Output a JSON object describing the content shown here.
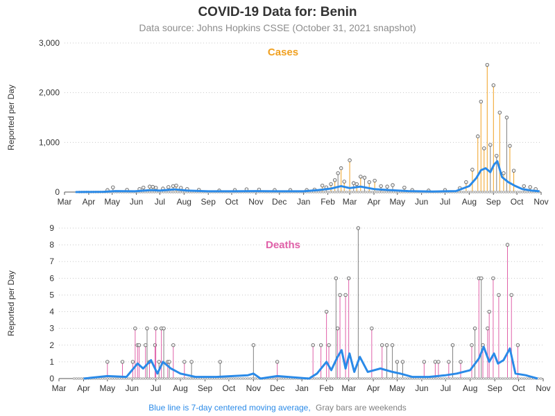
{
  "header": {
    "title": "COVID-19 Data for: Benin",
    "subtitle": "Data source: Johns Hopkins CSSE (October 31, 2021 snapshot)"
  },
  "footer": {
    "blue_note": "Blue line is 7-day centered moving average,",
    "gray_note": "Gray bars are weekends"
  },
  "colors": {
    "cases": "#f0a020",
    "deaths": "#e060a8",
    "average": "#2a8ae8",
    "weekend": "#808080",
    "grid": "#c8c8c8"
  },
  "chart_data": [
    {
      "type": "bar",
      "title": "Cases",
      "ylabel": "Reported per Day",
      "xlabel": "",
      "x_ticks": [
        "Mar",
        "Apr",
        "May",
        "Jun",
        "Jul",
        "Aug",
        "Sep",
        "Oct",
        "Nov",
        "Dec",
        "Jan",
        "Feb",
        "Mar",
        "Apr",
        "May",
        "Jun",
        "Jul",
        "Aug",
        "Sep",
        "Oct",
        "Nov"
      ],
      "y_ticks": [
        "0",
        "1,000",
        "2,000",
        "3,000"
      ],
      "ylim": [
        0,
        3000
      ],
      "x_range": [
        "2020-03-01",
        "2021-11-01"
      ],
      "grid": "horizontal dotted",
      "series": [
        {
          "name": "Reported per Day",
          "style": "vertical lines with circle markers",
          "points": [
            [
              "2020-04-25",
              40
            ],
            [
              "2020-05-02",
              95
            ],
            [
              "2020-05-20",
              45
            ],
            [
              "2020-06-05",
              60
            ],
            [
              "2020-06-10",
              90
            ],
            [
              "2020-06-18",
              110
            ],
            [
              "2020-06-22",
              105
            ],
            [
              "2020-06-26",
              85
            ],
            [
              "2020-07-05",
              70
            ],
            [
              "2020-07-12",
              100
            ],
            [
              "2020-07-18",
              120
            ],
            [
              "2020-07-22",
              130
            ],
            [
              "2020-07-28",
              85
            ],
            [
              "2020-08-05",
              60
            ],
            [
              "2020-08-20",
              45
            ],
            [
              "2020-09-15",
              30
            ],
            [
              "2020-10-05",
              40
            ],
            [
              "2020-10-20",
              55
            ],
            [
              "2020-11-05",
              50
            ],
            [
              "2020-11-25",
              40
            ],
            [
              "2020-12-15",
              40
            ],
            [
              "2021-01-05",
              40
            ],
            [
              "2021-01-15",
              50
            ],
            [
              "2021-01-25",
              130
            ],
            [
              "2021-01-30",
              95
            ],
            [
              "2021-02-05",
              160
            ],
            [
              "2021-02-10",
              240
            ],
            [
              "2021-02-14",
              380
            ],
            [
              "2021-02-18",
              480
            ],
            [
              "2021-02-22",
              210
            ],
            [
              "2021-03-01",
              640
            ],
            [
              "2021-03-06",
              180
            ],
            [
              "2021-03-10",
              160
            ],
            [
              "2021-03-15",
              310
            ],
            [
              "2021-03-20",
              290
            ],
            [
              "2021-03-26",
              200
            ],
            [
              "2021-04-02",
              230
            ],
            [
              "2021-04-10",
              120
            ],
            [
              "2021-04-18",
              110
            ],
            [
              "2021-04-25",
              140
            ],
            [
              "2021-05-10",
              90
            ],
            [
              "2021-05-20",
              40
            ],
            [
              "2021-06-10",
              30
            ],
            [
              "2021-07-01",
              40
            ],
            [
              "2021-07-20",
              80
            ],
            [
              "2021-07-28",
              200
            ],
            [
              "2021-08-05",
              450
            ],
            [
              "2021-08-12",
              1120
            ],
            [
              "2021-08-16",
              1820
            ],
            [
              "2021-08-20",
              880
            ],
            [
              "2021-08-24",
              2560
            ],
            [
              "2021-08-28",
              950
            ],
            [
              "2021-09-01",
              2150
            ],
            [
              "2021-09-05",
              730
            ],
            [
              "2021-09-09",
              1600
            ],
            [
              "2021-09-14",
              380
            ],
            [
              "2021-09-18",
              1500
            ],
            [
              "2021-09-22",
              930
            ],
            [
              "2021-09-27",
              430
            ],
            [
              "2021-10-10",
              120
            ],
            [
              "2021-10-18",
              100
            ],
            [
              "2021-10-25",
              60
            ]
          ]
        },
        {
          "name": "7-day centered moving average",
          "style": "line",
          "points": [
            [
              "2020-03-15",
              0
            ],
            [
              "2020-04-20",
              5
            ],
            [
              "2020-05-05",
              20
            ],
            [
              "2020-05-30",
              15
            ],
            [
              "2020-06-20",
              40
            ],
            [
              "2020-07-01",
              30
            ],
            [
              "2020-07-20",
              55
            ],
            [
              "2020-08-05",
              30
            ],
            [
              "2020-09-01",
              15
            ],
            [
              "2020-10-01",
              15
            ],
            [
              "2020-11-01",
              20
            ],
            [
              "2020-12-01",
              15
            ],
            [
              "2021-01-01",
              15
            ],
            [
              "2021-01-20",
              40
            ],
            [
              "2021-02-05",
              70
            ],
            [
              "2021-02-18",
              120
            ],
            [
              "2021-03-01",
              80
            ],
            [
              "2021-03-15",
              110
            ],
            [
              "2021-04-01",
              60
            ],
            [
              "2021-04-20",
              40
            ],
            [
              "2021-05-15",
              20
            ],
            [
              "2021-06-15",
              10
            ],
            [
              "2021-07-15",
              20
            ],
            [
              "2021-08-01",
              120
            ],
            [
              "2021-08-10",
              280
            ],
            [
              "2021-08-16",
              440
            ],
            [
              "2021-08-22",
              480
            ],
            [
              "2021-08-28",
              400
            ],
            [
              "2021-09-02",
              560
            ],
            [
              "2021-09-06",
              620
            ],
            [
              "2021-09-12",
              300
            ],
            [
              "2021-09-20",
              200
            ],
            [
              "2021-09-28",
              130
            ],
            [
              "2021-10-08",
              60
            ],
            [
              "2021-10-20",
              30
            ],
            [
              "2021-10-30",
              15
            ]
          ]
        }
      ]
    },
    {
      "type": "bar",
      "title": "Deaths",
      "ylabel": "Reported per Day",
      "xlabel": "",
      "x_ticks": [
        "Mar",
        "Apr",
        "May",
        "Jun",
        "Jul",
        "Aug",
        "Sep",
        "Oct",
        "Nov",
        "Dec",
        "Jan",
        "Feb",
        "Mar",
        "Apr",
        "May",
        "Jun",
        "Jul",
        "Aug",
        "Sep",
        "Oct",
        "Nov"
      ],
      "y_ticks": [
        "0",
        "1",
        "2",
        "3",
        "4",
        "5",
        "6",
        "7",
        "8",
        "9"
      ],
      "ylim": [
        0,
        9
      ],
      "x_range": [
        "2020-03-01",
        "2021-11-01"
      ],
      "grid": "horizontal dotted",
      "series": [
        {
          "name": "Reported per Day",
          "style": "vertical lines with circle markers",
          "points": [
            [
              "2020-05-01",
              1
            ],
            [
              "2020-05-20",
              1
            ],
            [
              "2020-06-02",
              1
            ],
            [
              "2020-06-05",
              3
            ],
            [
              "2020-06-08",
              2
            ],
            [
              "2020-06-10",
              2
            ],
            [
              "2020-06-18",
              2
            ],
            [
              "2020-06-20",
              3
            ],
            [
              "2020-06-23",
              1
            ],
            [
              "2020-06-30",
              2
            ],
            [
              "2020-07-01",
              3
            ],
            [
              "2020-07-05",
              1
            ],
            [
              "2020-07-08",
              3
            ],
            [
              "2020-07-11",
              3
            ],
            [
              "2020-07-16",
              1
            ],
            [
              "2020-07-18",
              1
            ],
            [
              "2020-07-23",
              2
            ],
            [
              "2020-08-06",
              1
            ],
            [
              "2020-08-15",
              1
            ],
            [
              "2020-09-20",
              1
            ],
            [
              "2020-11-01",
              2
            ],
            [
              "2020-12-01",
              1
            ],
            [
              "2021-01-15",
              2
            ],
            [
              "2021-01-25",
              2
            ],
            [
              "2021-02-01",
              4
            ],
            [
              "2021-02-04",
              2
            ],
            [
              "2021-02-13",
              6
            ],
            [
              "2021-02-15",
              3
            ],
            [
              "2021-02-18",
              5
            ],
            [
              "2021-02-25",
              5
            ],
            [
              "2021-03-01",
              6
            ],
            [
              "2021-03-13",
              9
            ],
            [
              "2021-03-30",
              3
            ],
            [
              "2021-04-12",
              2
            ],
            [
              "2021-04-18",
              2
            ],
            [
              "2021-04-25",
              2
            ],
            [
              "2021-05-01",
              1
            ],
            [
              "2021-05-08",
              1
            ],
            [
              "2021-06-04",
              1
            ],
            [
              "2021-06-18",
              1
            ],
            [
              "2021-06-22",
              1
            ],
            [
              "2021-07-05",
              1
            ],
            [
              "2021-07-10",
              2
            ],
            [
              "2021-07-20",
              1
            ],
            [
              "2021-08-03",
              2
            ],
            [
              "2021-08-07",
              3
            ],
            [
              "2021-08-12",
              6
            ],
            [
              "2021-08-15",
              6
            ],
            [
              "2021-08-17",
              2
            ],
            [
              "2021-08-23",
              3
            ],
            [
              "2021-08-25",
              4
            ],
            [
              "2021-08-30",
              6
            ],
            [
              "2021-09-06",
              5
            ],
            [
              "2021-09-17",
              8
            ],
            [
              "2021-09-22",
              5
            ],
            [
              "2021-09-30",
              2
            ]
          ]
        },
        {
          "name": "7-day centered moving average",
          "style": "line",
          "points": [
            [
              "2020-04-01",
              0
            ],
            [
              "2020-05-01",
              0.15
            ],
            [
              "2020-05-25",
              0.1
            ],
            [
              "2020-06-08",
              0.9
            ],
            [
              "2020-06-15",
              0.6
            ],
            [
              "2020-06-25",
              1.1
            ],
            [
              "2020-07-03",
              0.3
            ],
            [
              "2020-07-10",
              1.0
            ],
            [
              "2020-07-20",
              0.6
            ],
            [
              "2020-08-01",
              0.3
            ],
            [
              "2020-08-20",
              0.1
            ],
            [
              "2020-09-15",
              0.1
            ],
            [
              "2020-10-25",
              0.2
            ],
            [
              "2020-11-01",
              0.3
            ],
            [
              "2020-11-10",
              0
            ],
            [
              "2020-12-01",
              0.15
            ],
            [
              "2021-01-10",
              0
            ],
            [
              "2021-01-20",
              0.3
            ],
            [
              "2021-02-01",
              1.0
            ],
            [
              "2021-02-07",
              0.5
            ],
            [
              "2021-02-15",
              1.3
            ],
            [
              "2021-02-20",
              1.7
            ],
            [
              "2021-02-25",
              0.6
            ],
            [
              "2021-03-02",
              1.5
            ],
            [
              "2021-03-08",
              0.4
            ],
            [
              "2021-03-15",
              1.3
            ],
            [
              "2021-03-25",
              0.4
            ],
            [
              "2021-04-10",
              0.6
            ],
            [
              "2021-04-25",
              0.4
            ],
            [
              "2021-05-05",
              0.3
            ],
            [
              "2021-05-20",
              0.1
            ],
            [
              "2021-06-10",
              0.1
            ],
            [
              "2021-07-01",
              0.2
            ],
            [
              "2021-07-15",
              0.3
            ],
            [
              "2021-08-01",
              0.5
            ],
            [
              "2021-08-12",
              1.2
            ],
            [
              "2021-08-18",
              1.9
            ],
            [
              "2021-08-25",
              1.0
            ],
            [
              "2021-08-31",
              1.5
            ],
            [
              "2021-09-05",
              0.9
            ],
            [
              "2021-09-12",
              1.1
            ],
            [
              "2021-09-20",
              1.8
            ],
            [
              "2021-09-27",
              0.3
            ],
            [
              "2021-10-10",
              0.2
            ],
            [
              "2021-10-25",
              0
            ]
          ]
        }
      ]
    }
  ]
}
